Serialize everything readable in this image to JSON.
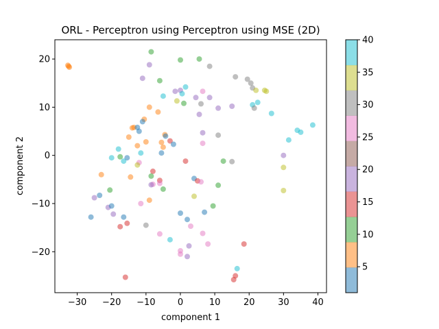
{
  "chart_data": {
    "type": "scatter",
    "title": "ORL - Perceptron using Perceptron using MSE (2D)",
    "xlabel": "component 1",
    "ylabel": "component 2",
    "xlim": [
      -36.5,
      42.5
    ],
    "ylim": [
      -28.5,
      24
    ],
    "x_ticks": [
      -30,
      -20,
      -10,
      0,
      10,
      20,
      30,
      40
    ],
    "y_ticks": [
      -20,
      -10,
      0,
      10,
      20
    ],
    "grid": false,
    "colorbar": {
      "colormap": "tab10",
      "min": 1,
      "max": 40,
      "ticks": [
        5,
        10,
        15,
        20,
        25,
        30,
        35,
        40
      ],
      "colors": [
        "#1f77b4",
        "#ff7f0e",
        "#2ca02c",
        "#d62728",
        "#9467bd",
        "#8c564b",
        "#e377c2",
        "#7f7f7f",
        "#bcbd22",
        "#17becf"
      ]
    },
    "marker_alpha": 0.5,
    "points": [
      {
        "x": -32.5,
        "y": 18.5,
        "c": 5
      },
      {
        "x": -32.3,
        "y": 18.3,
        "c": 5
      },
      {
        "x": -32.7,
        "y": 18.7,
        "c": 5
      },
      {
        "x": -8.5,
        "y": 21.5,
        "c": 10
      },
      {
        "x": 0,
        "y": 19.8,
        "c": 10
      },
      {
        "x": 5.5,
        "y": 20,
        "c": 10
      },
      {
        "x": -9,
        "y": 18.8,
        "c": 20
      },
      {
        "x": 8.5,
        "y": 18.5,
        "c": 30
      },
      {
        "x": -11,
        "y": 16,
        "c": 20
      },
      {
        "x": -6,
        "y": 15.5,
        "c": 10
      },
      {
        "x": 16,
        "y": 16.3,
        "c": 30
      },
      {
        "x": 19.5,
        "y": 15.8,
        "c": 30
      },
      {
        "x": 20.5,
        "y": 15,
        "c": 30
      },
      {
        "x": 21,
        "y": 14,
        "c": 30
      },
      {
        "x": 22,
        "y": 13.5,
        "c": 35
      },
      {
        "x": 24.5,
        "y": 13.5,
        "c": 35
      },
      {
        "x": 25,
        "y": 13.3,
        "c": 35
      },
      {
        "x": 1.5,
        "y": 14.2,
        "c": 40
      },
      {
        "x": 0,
        "y": 13.5,
        "c": 20
      },
      {
        "x": -1.5,
        "y": 13.3,
        "c": 20
      },
      {
        "x": 0.5,
        "y": 12.8,
        "c": 40
      },
      {
        "x": 6.5,
        "y": 13.3,
        "c": 25
      },
      {
        "x": -5,
        "y": 12.3,
        "c": 40
      },
      {
        "x": 4.5,
        "y": 12,
        "c": 20
      },
      {
        "x": 8.5,
        "y": 12,
        "c": 20
      },
      {
        "x": 22.5,
        "y": 11,
        "c": 40
      },
      {
        "x": 21,
        "y": 10.5,
        "c": 40
      },
      {
        "x": 21.5,
        "y": 9.8,
        "c": 30
      },
      {
        "x": -1,
        "y": 11.3,
        "c": 35
      },
      {
        "x": 1,
        "y": 10.8,
        "c": 10
      },
      {
        "x": 6,
        "y": 10.7,
        "c": 30
      },
      {
        "x": 11,
        "y": 9.8,
        "c": 20
      },
      {
        "x": 15,
        "y": 10.2,
        "c": 20
      },
      {
        "x": -9,
        "y": 10,
        "c": 5
      },
      {
        "x": -6.5,
        "y": 9,
        "c": 5
      },
      {
        "x": 5.5,
        "y": 8.5,
        "c": 20
      },
      {
        "x": 26.5,
        "y": 8.7,
        "c": 40
      },
      {
        "x": -10.5,
        "y": 7.5,
        "c": 5
      },
      {
        "x": -11,
        "y": 7,
        "c": 1
      },
      {
        "x": -14,
        "y": 5.7,
        "c": 5
      },
      {
        "x": -13.5,
        "y": 5.8,
        "c": 5
      },
      {
        "x": -12.5,
        "y": 5.8,
        "c": 1
      },
      {
        "x": -12,
        "y": 5,
        "c": 1
      },
      {
        "x": 6.5,
        "y": 4.7,
        "c": 20
      },
      {
        "x": 11,
        "y": 4.2,
        "c": 30
      },
      {
        "x": 34,
        "y": 5.2,
        "c": 40
      },
      {
        "x": 35,
        "y": 4.8,
        "c": 40
      },
      {
        "x": 38.5,
        "y": 6.3,
        "c": 40
      },
      {
        "x": -15,
        "y": 3.8,
        "c": 5
      },
      {
        "x": -4.5,
        "y": 4.3,
        "c": 5
      },
      {
        "x": -4.3,
        "y": 4,
        "c": 1
      },
      {
        "x": -3,
        "y": 3,
        "c": 15
      },
      {
        "x": -5.5,
        "y": 2.7,
        "c": 5
      },
      {
        "x": -2,
        "y": 2.3,
        "c": 1
      },
      {
        "x": -10,
        "y": 2.8,
        "c": 5
      },
      {
        "x": -12.5,
        "y": 2,
        "c": 5
      },
      {
        "x": -5,
        "y": 1.7,
        "c": 5
      },
      {
        "x": 6.5,
        "y": 2.5,
        "c": 25
      },
      {
        "x": 31.5,
        "y": 3.2,
        "c": 40
      },
      {
        "x": -18,
        "y": 1.3,
        "c": 40
      },
      {
        "x": -11.5,
        "y": 0.5,
        "c": 40
      },
      {
        "x": -5.5,
        "y": 0.5,
        "c": 1
      },
      {
        "x": -20,
        "y": -0.5,
        "c": 40
      },
      {
        "x": -17.5,
        "y": -0.3,
        "c": 10
      },
      {
        "x": -15.5,
        "y": -0.5,
        "c": 1
      },
      {
        "x": -16.5,
        "y": -1.2,
        "c": 40
      },
      {
        "x": -12,
        "y": -1.5,
        "c": 25
      },
      {
        "x": -12.5,
        "y": -2,
        "c": 35
      },
      {
        "x": 1.5,
        "y": -1.2,
        "c": 15
      },
      {
        "x": 12.5,
        "y": -1.2,
        "c": 10
      },
      {
        "x": 15,
        "y": -1.3,
        "c": 30
      },
      {
        "x": 30,
        "y": 0,
        "c": 20
      },
      {
        "x": 30,
        "y": -2.5,
        "c": 35
      },
      {
        "x": -23,
        "y": -4,
        "c": 5
      },
      {
        "x": -14.5,
        "y": -4.5,
        "c": 5
      },
      {
        "x": -8,
        "y": -3.3,
        "c": 15
      },
      {
        "x": -8.5,
        "y": -4.3,
        "c": 10
      },
      {
        "x": -6,
        "y": -5.2,
        "c": 15
      },
      {
        "x": -6,
        "y": -5.8,
        "c": 25
      },
      {
        "x": -8,
        "y": -6,
        "c": 25
      },
      {
        "x": -8.5,
        "y": -6.1,
        "c": 20
      },
      {
        "x": 4,
        "y": -4.8,
        "c": 1
      },
      {
        "x": 5,
        "y": -5.3,
        "c": 15
      },
      {
        "x": 6,
        "y": -5.5,
        "c": 25
      },
      {
        "x": 11,
        "y": -6.2,
        "c": 10
      },
      {
        "x": -20.5,
        "y": -7.2,
        "c": 10
      },
      {
        "x": -5,
        "y": -7,
        "c": 10
      },
      {
        "x": 30,
        "y": -7.3,
        "c": 35
      },
      {
        "x": -25,
        "y": -8.8,
        "c": 20
      },
      {
        "x": -23.5,
        "y": -8.3,
        "c": 1
      },
      {
        "x": 4,
        "y": -8.5,
        "c": 35
      },
      {
        "x": -9,
        "y": -9.3,
        "c": 5
      },
      {
        "x": -21,
        "y": -10.8,
        "c": 20
      },
      {
        "x": -20,
        "y": -10.5,
        "c": 1
      },
      {
        "x": -11.5,
        "y": -10,
        "c": 25
      },
      {
        "x": 9.5,
        "y": -10.5,
        "c": 10
      },
      {
        "x": -19.5,
        "y": -12.2,
        "c": 20
      },
      {
        "x": -16.5,
        "y": -12.8,
        "c": 1
      },
      {
        "x": -26,
        "y": -12.8,
        "c": 1
      },
      {
        "x": 0,
        "y": -12,
        "c": 1
      },
      {
        "x": 7,
        "y": -11.8,
        "c": 1
      },
      {
        "x": 2,
        "y": -13.3,
        "c": 1
      },
      {
        "x": -15.5,
        "y": -14.1,
        "c": 15
      },
      {
        "x": -17.5,
        "y": -14.8,
        "c": 15
      },
      {
        "x": -10,
        "y": -14.5,
        "c": 30
      },
      {
        "x": 3,
        "y": -14.7,
        "c": 25
      },
      {
        "x": -6,
        "y": -16.3,
        "c": 25
      },
      {
        "x": 6.5,
        "y": -16.2,
        "c": 25
      },
      {
        "x": -3,
        "y": -17.5,
        "c": 40
      },
      {
        "x": 8,
        "y": -18.4,
        "c": 25
      },
      {
        "x": 18.5,
        "y": -18.4,
        "c": 15
      },
      {
        "x": 2.5,
        "y": -18.8,
        "c": 20
      },
      {
        "x": 0,
        "y": -19.8,
        "c": 25
      },
      {
        "x": 0,
        "y": -20.5,
        "c": 25
      },
      {
        "x": 2,
        "y": -21,
        "c": 20
      },
      {
        "x": 16.5,
        "y": -23.5,
        "c": 40
      },
      {
        "x": 16,
        "y": -25,
        "c": 15
      },
      {
        "x": 15.5,
        "y": -25.8,
        "c": 15
      },
      {
        "x": -16,
        "y": -25.3,
        "c": 15
      }
    ]
  }
}
